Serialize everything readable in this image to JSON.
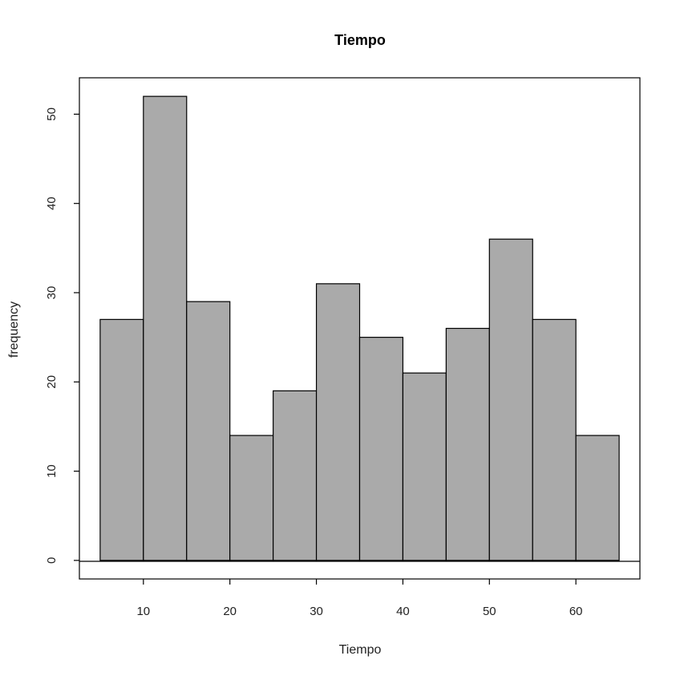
{
  "chart_data": {
    "type": "bar",
    "title": "Tiempo",
    "xlabel": "Tiempo",
    "ylabel": "frequency",
    "bin_edges": [
      5,
      10,
      15,
      20,
      25,
      30,
      35,
      40,
      45,
      50,
      55,
      60,
      65
    ],
    "values": [
      27,
      52,
      29,
      14,
      19,
      31,
      25,
      21,
      26,
      36,
      27,
      14
    ],
    "xlim": [
      2.6,
      67.4
    ],
    "ylim": [
      -2.08,
      54.08
    ],
    "xticks": [
      10,
      20,
      30,
      40,
      50,
      60
    ],
    "xtick_labels": [
      "10",
      "20",
      "30",
      "40",
      "50",
      "60"
    ],
    "yticks": [
      0,
      10,
      20,
      30,
      40,
      50
    ],
    "ytick_labels": [
      "0",
      "10",
      "20",
      "30",
      "40",
      "50"
    ],
    "grid": false,
    "bar_color": "#aaaaaa",
    "edge_color": "#000000"
  }
}
